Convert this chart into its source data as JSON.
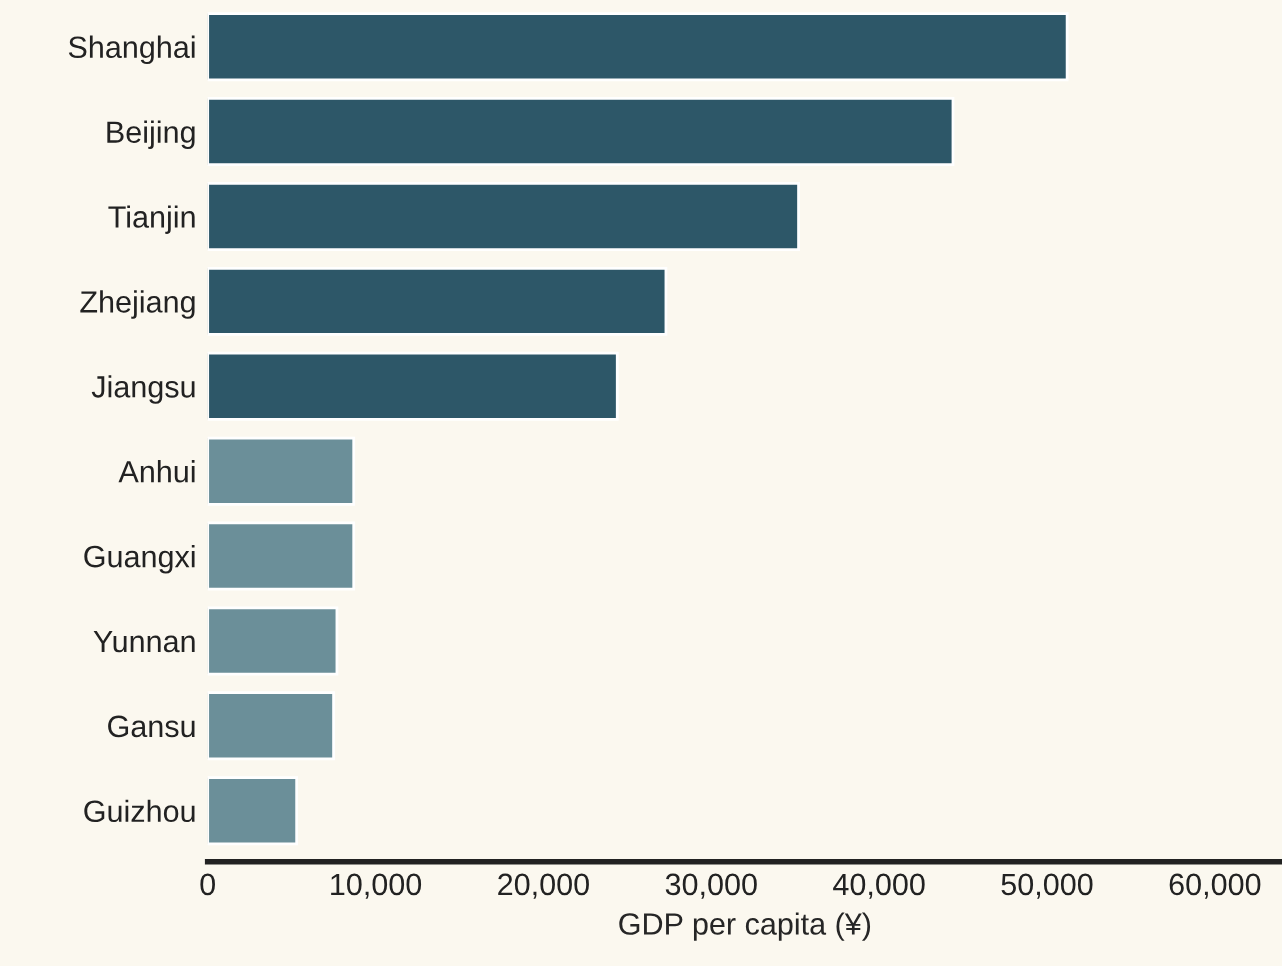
{
  "chart_data": {
    "type": "bar",
    "orientation": "horizontal",
    "xlabel": "GDP per capita (¥)",
    "categories": [
      "Shanghai",
      "Beijing",
      "Tianjin",
      "Zhejiang",
      "Jiangsu",
      "Anhui",
      "Guangxi",
      "Yunnan",
      "Gansu",
      "Guizhou"
    ],
    "values": [
      51200,
      44400,
      35200,
      27300,
      24400,
      8700,
      8700,
      7700,
      7500,
      5300
    ],
    "colors": [
      "#2d5768",
      "#2d5768",
      "#2d5768",
      "#2d5768",
      "#2d5768",
      "#6b8f99",
      "#6b8f99",
      "#6b8f99",
      "#6b8f99",
      "#6b8f99"
    ],
    "xlim": [
      0,
      64000
    ],
    "xticks": [
      0,
      {
        "value": 10000,
        "label": "10,000"
      },
      {
        "value": 20000,
        "label": "20,000"
      },
      {
        "value": 30000,
        "label": "30,000"
      },
      {
        "value": 40000,
        "label": "40,000"
      },
      {
        "value": 50000,
        "label": "50,000"
      },
      {
        "value": 60000,
        "label": "60,000"
      }
    ],
    "grid": false,
    "legend": false
  }
}
